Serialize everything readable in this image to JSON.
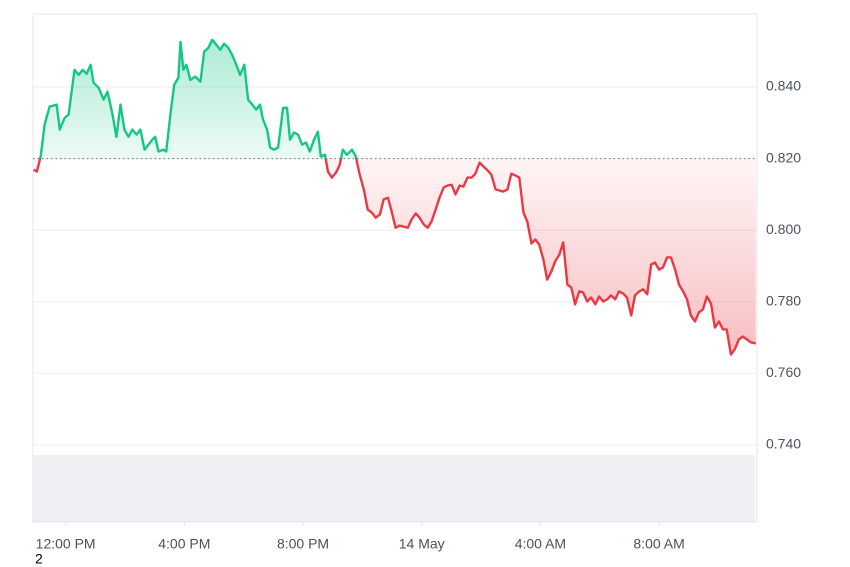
{
  "chart_data": {
    "type": "line",
    "x": [
      10.92,
      11.03,
      11.16,
      11.29,
      11.46,
      11.7,
      11.8,
      11.97,
      12.1,
      12.3,
      12.44,
      12.57,
      12.71,
      12.84,
      12.94,
      13.11,
      13.28,
      13.41,
      13.58,
      13.71,
      13.85,
      13.98,
      14.12,
      14.25,
      14.39,
      14.52,
      14.66,
      14.79,
      14.92,
      15.02,
      15.13,
      15.29,
      15.39,
      15.53,
      15.66,
      15.8,
      15.87,
      15.97,
      16.07,
      16.2,
      16.37,
      16.54,
      16.67,
      16.81,
      16.94,
      17.08,
      17.21,
      17.34,
      17.48,
      17.61,
      17.75,
      17.88,
      18.02,
      18.15,
      18.29,
      18.42,
      18.55,
      18.65,
      18.79,
      18.89,
      19.02,
      19.16,
      19.33,
      19.46,
      19.56,
      19.7,
      19.83,
      19.97,
      20.1,
      20.23,
      20.37,
      20.5,
      20.6,
      20.74,
      20.84,
      20.97,
      21.11,
      21.24,
      21.34,
      21.48,
      21.65,
      21.78,
      21.91,
      22.05,
      22.18,
      22.32,
      22.45,
      22.59,
      22.72,
      22.86,
      22.99,
      23.12,
      23.26,
      23.39,
      23.53,
      23.66,
      23.8,
      23.93,
      24.07,
      24.2,
      24.33,
      24.47,
      24.6,
      24.74,
      24.87,
      25.01,
      25.14,
      25.28,
      25.41,
      25.54,
      25.68,
      25.81,
      25.95,
      26.08,
      26.22,
      26.35,
      26.49,
      26.62,
      26.75,
      26.89,
      27.02,
      27.16,
      27.29,
      27.43,
      27.56,
      27.7,
      27.83,
      27.96,
      28.1,
      28.23,
      28.37,
      28.5,
      28.64,
      28.77,
      28.91,
      29.04,
      29.17,
      29.31,
      29.44,
      29.58,
      29.71,
      29.85,
      29.98,
      30.12,
      30.25,
      30.38,
      30.52,
      30.65,
      30.79,
      30.92,
      31.06,
      31.19,
      31.33,
      31.46,
      31.6,
      31.73,
      31.86,
      32.0,
      32.13,
      32.27,
      32.4,
      32.54,
      32.67,
      32.81,
      32.94,
      33.07,
      33.21,
      33.34,
      33.48,
      33.61,
      33.75,
      33.88,
      34.02,
      34.15,
      34.28,
      34.42,
      34.55,
      34.69,
      34.82,
      34.96,
      35.09,
      35.26
    ],
    "values": [
      0.8169,
      0.8164,
      0.8206,
      0.8295,
      0.8345,
      0.8351,
      0.8281,
      0.8314,
      0.8323,
      0.8448,
      0.8434,
      0.8448,
      0.8437,
      0.8462,
      0.8412,
      0.8398,
      0.8365,
      0.8387,
      0.8323,
      0.8261,
      0.8351,
      0.8281,
      0.8261,
      0.8281,
      0.8267,
      0.8281,
      0.8225,
      0.8239,
      0.8253,
      0.8261,
      0.822,
      0.8225,
      0.822,
      0.8323,
      0.8406,
      0.8426,
      0.8526,
      0.8448,
      0.8462,
      0.842,
      0.8429,
      0.8415,
      0.8499,
      0.851,
      0.8532,
      0.8518,
      0.8504,
      0.8521,
      0.851,
      0.849,
      0.8462,
      0.8434,
      0.8462,
      0.8365,
      0.8351,
      0.8337,
      0.8351,
      0.8309,
      0.8281,
      0.8231,
      0.8225,
      0.8231,
      0.8342,
      0.8342,
      0.8253,
      0.8273,
      0.8267,
      0.8239,
      0.8245,
      0.822,
      0.8253,
      0.8275,
      0.8206,
      0.8211,
      0.8164,
      0.8147,
      0.8161,
      0.8183,
      0.8225,
      0.8211,
      0.8225,
      0.8206,
      0.8155,
      0.8114,
      0.8058,
      0.8049,
      0.8035,
      0.8044,
      0.8086,
      0.8091,
      0.8052,
      0.8007,
      0.8013,
      0.801,
      0.8007,
      0.803,
      0.8047,
      0.8035,
      0.8016,
      0.8007,
      0.8024,
      0.8058,
      0.8091,
      0.8119,
      0.8125,
      0.8127,
      0.81,
      0.8125,
      0.8122,
      0.8147,
      0.8147,
      0.8158,
      0.8189,
      0.8178,
      0.8167,
      0.8155,
      0.8114,
      0.8111,
      0.8108,
      0.8114,
      0.8158,
      0.8153,
      0.8147,
      0.8049,
      0.8024,
      0.7963,
      0.7974,
      0.796,
      0.7918,
      0.7862,
      0.7885,
      0.7913,
      0.7932,
      0.7966,
      0.7848,
      0.784,
      0.7793,
      0.7829,
      0.7826,
      0.7801,
      0.7812,
      0.7793,
      0.7815,
      0.7801,
      0.7807,
      0.7818,
      0.7807,
      0.7829,
      0.7823,
      0.7812,
      0.7762,
      0.7818,
      0.7829,
      0.7835,
      0.7821,
      0.7904,
      0.791,
      0.789,
      0.7896,
      0.7924,
      0.7924,
      0.789,
      0.7848,
      0.7829,
      0.7807,
      0.7762,
      0.7745,
      0.777,
      0.7779,
      0.7815,
      0.7795,
      0.7728,
      0.7745,
      0.7723,
      0.7723,
      0.7653,
      0.7667,
      0.7695,
      0.7703,
      0.7695,
      0.7687,
      0.7684
    ],
    "baseline": 0.82,
    "up_color": "#16c784",
    "down_color": "#ea3943",
    "xlim": [
      10.9,
      35.3
    ],
    "xticks": [
      {
        "value": 12,
        "label": "12:00 PM"
      },
      {
        "value": 16,
        "label": "4:00 PM"
      },
      {
        "value": 20,
        "label": "8:00 PM"
      },
      {
        "value": 24,
        "label": "14 May"
      },
      {
        "value": 28,
        "label": "4:00 AM"
      },
      {
        "value": 32,
        "label": "8:00 AM"
      }
    ],
    "ylim": [
      0.7185,
      0.8604
    ],
    "yticks": [
      {
        "value": 0.74,
        "label": "0.740"
      },
      {
        "value": 0.76,
        "label": "0.760"
      },
      {
        "value": 0.78,
        "label": "0.780"
      },
      {
        "value": 0.8,
        "label": "0.800"
      },
      {
        "value": 0.82,
        "label": "0.820"
      },
      {
        "value": 0.84,
        "label": "0.840"
      }
    ],
    "grid": true,
    "annotation": "2"
  }
}
